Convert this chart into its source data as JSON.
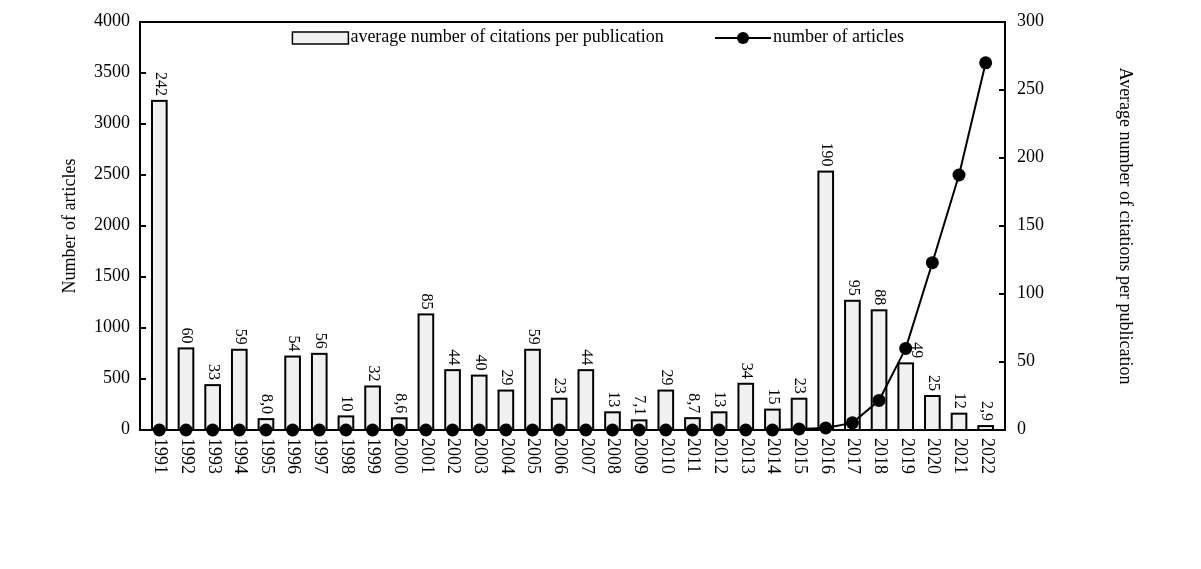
{
  "chart_data": {
    "type": "bar",
    "xlabel": null,
    "ylabel": "Number of articles",
    "y2label": "Average number of citations per publication",
    "categories": [
      "1991",
      "1992",
      "1993",
      "1994",
      "1995",
      "1996",
      "1997",
      "1998",
      "1999",
      "2000",
      "2001",
      "2002",
      "2003",
      "2004",
      "2005",
      "2006",
      "2007",
      "2008",
      "2009",
      "2010",
      "2011",
      "2012",
      "2013",
      "2014",
      "2015",
      "2016",
      "2017",
      "2018",
      "2019",
      "2020",
      "2021",
      "2022"
    ],
    "series": [
      {
        "name": "average number of citations per publication",
        "axis": "y2",
        "color": "#f0f0f0",
        "values": [
          242,
          60,
          33,
          59,
          8.0,
          54,
          56,
          10,
          32,
          8.6,
          85,
          44,
          40,
          29,
          59,
          23,
          44,
          13,
          7.1,
          29,
          8.7,
          13,
          34,
          15,
          23,
          190,
          95,
          88,
          49,
          25,
          12,
          2.9
        ],
        "value_labels": [
          "242",
          "60",
          "33",
          "59",
          "8,0",
          "54",
          "56",
          "10",
          "32",
          "8,6",
          "85",
          "44",
          "40",
          "29",
          "59",
          "23",
          "44",
          "13",
          "7,1",
          "29",
          "8,7",
          "13",
          "34",
          "15",
          "23",
          "190",
          "95",
          "88",
          "49",
          "25",
          "12",
          "2,9"
        ]
      },
      {
        "name": "number of articles",
        "type": "line",
        "color": "#000000",
        "marker": "circle",
        "values": [
          0,
          0,
          0,
          0,
          0,
          0,
          0,
          0,
          0,
          0,
          0,
          0,
          0,
          0,
          0,
          0,
          0,
          0,
          0,
          0,
          0,
          0,
          0,
          0,
          10,
          20,
          70,
          290,
          800,
          1640,
          2500,
          3600
        ]
      }
    ],
    "ylim": [
      0,
      4000
    ],
    "yticks": [
      0,
      500,
      1000,
      1500,
      2000,
      2500,
      3000,
      3500,
      4000
    ],
    "y2lim": [
      0,
      300
    ],
    "y2ticks": [
      0,
      50,
      100,
      150,
      200,
      250,
      300
    ],
    "legend": "top"
  }
}
